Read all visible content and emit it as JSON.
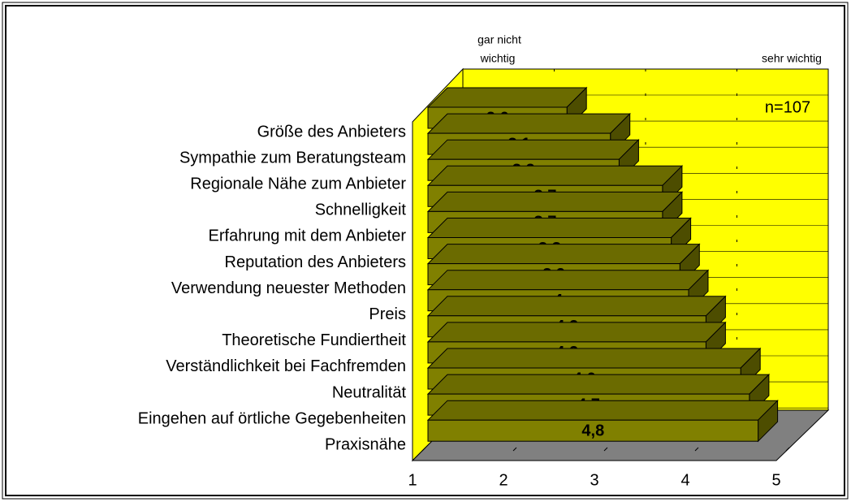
{
  "chart_data": {
    "type": "bar3d_horizontal",
    "categories": [
      "Größe des Anbieters",
      "Sympathie zum Beratungsteam",
      "Regionale Nähe zum Anbieter",
      "Schnelligkeit",
      "Erfahrung mit dem Anbieter",
      "Reputation des Anbieters",
      "Verwendung neuester Methoden",
      "Preis",
      "Theoretische Fundiertheit",
      "Verständlichkeit bei Fachfremden",
      "Neutralität",
      "Eingehen auf örtliche Gegebenheiten",
      "Praxisnähe"
    ],
    "values": [
      2.6,
      3.1,
      3.2,
      3.7,
      3.7,
      3.8,
      3.9,
      4,
      4.2,
      4.2,
      4.6,
      4.7,
      4.8
    ],
    "value_labels": [
      "2,6",
      "3,1",
      "3,2",
      "3,7",
      "3,7",
      "3,8",
      "3,9",
      "4",
      "4,2",
      "4,2",
      "4,6",
      "4,7",
      "4,8"
    ],
    "color": "#808000",
    "xlim": [
      1,
      5
    ],
    "xticks": [
      1,
      2,
      3,
      4,
      5
    ],
    "low_label": [
      "gar nicht",
      "wichtig"
    ],
    "high_label": "sehr wichtig",
    "note": "n=107"
  }
}
